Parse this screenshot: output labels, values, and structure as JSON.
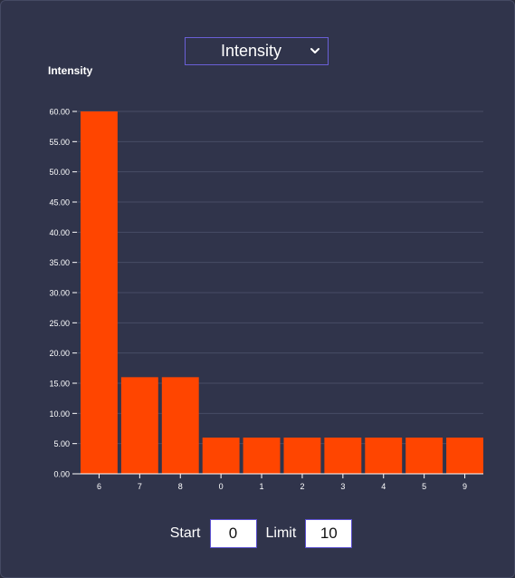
{
  "metric_select": {
    "selected": "Intensity"
  },
  "controls": {
    "start_label": "Start",
    "start_value": "0",
    "limit_label": "Limit",
    "limit_value": "10"
  },
  "colors": {
    "bar": "#ff4500",
    "gridline": "#474c66",
    "axis": "#ffffff",
    "text": "#ffffff",
    "select_border": "#6a5fd6"
  },
  "icons": {
    "select_chevron": "chevron-down-icon"
  },
  "chart_data": {
    "type": "bar",
    "ylabel": "Intensity",
    "categories": [
      "6",
      "7",
      "8",
      "0",
      "1",
      "2",
      "3",
      "4",
      "5",
      "9"
    ],
    "values": [
      60,
      16,
      16,
      6,
      6,
      6,
      6,
      6,
      6,
      6
    ],
    "ylim": [
      0,
      60
    ],
    "yticks": [
      0,
      5,
      10,
      15,
      20,
      25,
      30,
      35,
      40,
      45,
      50,
      55,
      60
    ],
    "ytick_labels": [
      "0.00",
      "5.00",
      "10.00",
      "15.00",
      "20.00",
      "25.00",
      "30.00",
      "35.00",
      "40.00",
      "45.00",
      "50.00",
      "55.00",
      "60.00"
    ],
    "grid": true
  }
}
